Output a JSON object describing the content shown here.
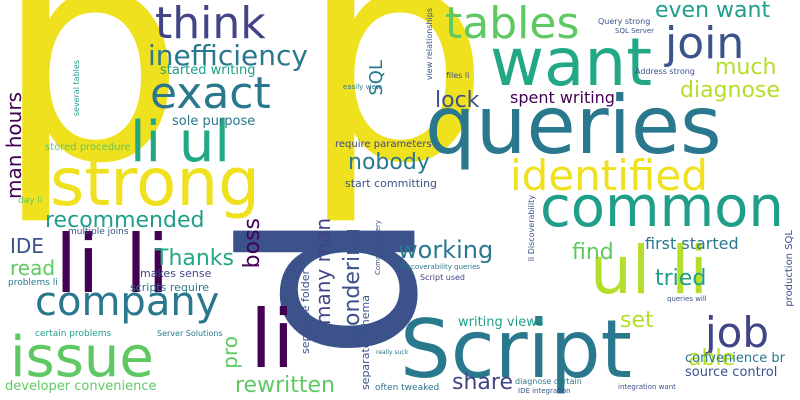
{
  "palette": {
    "yellow": "#f0e11f",
    "lime": "#b5de2b",
    "green": "#5ec962",
    "teal": "#22a884",
    "cyan": "#1f9e89",
    "blue": "#2a788e",
    "slate": "#3b528b",
    "indigo": "#414487",
    "purple": "#440154"
  },
  "words": {
    "p1": "p",
    "p2": "p",
    "p3": "p",
    "queries": "queries",
    "strong": "strong",
    "want": "want",
    "script": "Script",
    "common": "common",
    "li_ul": "li ul",
    "ul_li": "ul li",
    "li_li": "li li",
    "li": "li",
    "issue": "issue",
    "company": "company",
    "identified": "identified",
    "tables": "tables",
    "think": "think",
    "exact": "exact",
    "join": "join",
    "job": "job",
    "inefficiency": "inefficiency",
    "even_want": "even want",
    "much": "much",
    "diagnose": "diagnose",
    "lock": "lock",
    "spent_writing": "spent writing",
    "nobody": "nobody",
    "recommended": "recommended",
    "working": "working",
    "find": "find",
    "tried": "tried",
    "first_started": "first started",
    "thanks": "Thanks",
    "boss": "boss",
    "wondering": "wondering",
    "many_man": "many man",
    "man_hours": "man hours",
    "ide": "IDE",
    "read": "read",
    "set": "set",
    "able": "able",
    "share": "share",
    "rewritten": "rewritten",
    "pro": "pro",
    "sql": "SQL",
    "started_writing": "started writing",
    "sole_purpose": "sole purpose",
    "developer_convenience": "developer convenience",
    "convenience_br": "convenience br",
    "source_control": "source control",
    "writing_views": "writing views",
    "start_committing": "start committing",
    "makes_sense": "makes sense",
    "scripts_require": "scripts require",
    "separate_folder": "separate folder",
    "separate_schema": "separate schema",
    "stored_procedure": "stored procedure",
    "require_parameters": "require parameters",
    "multiple_joins": "multiple joins",
    "problems_li": "problems li",
    "certain_problems": "certain problems",
    "server_solutions": "Server Solutions",
    "day_li": "day li",
    "several_tables": "several tables",
    "view_relationships": "view relationships",
    "files_li": "files li",
    "easily_view": "easily view",
    "query_strong": "Query strong",
    "sql_server": "SQL Server",
    "address_strong": "Address strong",
    "production_sql": "production SQL",
    "common_query": "Common Query",
    "li_discoverability": "li Discoverability",
    "discoverability_queries": "Discoverability queries",
    "script_used": "Script used",
    "queries_will": "queries will",
    "integration_want": "integration want",
    "ide_integration": "IDE integration",
    "diagnose_certain": "diagnose certain",
    "often_tweaked": "often tweaked",
    "really_suck": "really suck"
  }
}
